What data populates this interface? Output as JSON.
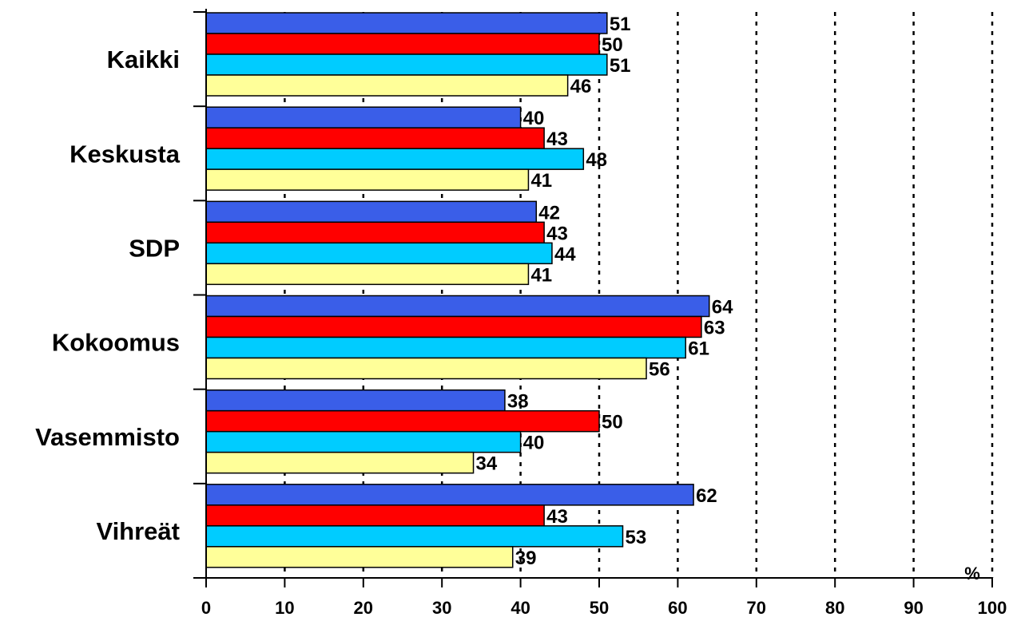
{
  "chart_data": {
    "type": "bar",
    "orientation": "horizontal",
    "categories": [
      "Kaikki",
      "Keskusta",
      "SDP",
      "Kokoomus",
      "Vasemmisto",
      "Vihreät"
    ],
    "series": [
      {
        "color": "#3a5ee8",
        "values": [
          51,
          40,
          42,
          64,
          38,
          62
        ]
      },
      {
        "color": "#ff0000",
        "values": [
          50,
          43,
          43,
          63,
          50,
          43
        ]
      },
      {
        "color": "#00ccff",
        "values": [
          51,
          48,
          44,
          61,
          40,
          53
        ]
      },
      {
        "color": "#ffff99",
        "values": [
          46,
          41,
          41,
          56,
          34,
          39
        ]
      }
    ],
    "xlim": [
      0,
      100
    ],
    "x_ticks": [
      "0",
      "10",
      "20",
      "30",
      "40",
      "50",
      "60",
      "70",
      "80",
      "90",
      "100"
    ],
    "x_unit": "%",
    "grid": "vertical-dotted",
    "legend": "none"
  }
}
